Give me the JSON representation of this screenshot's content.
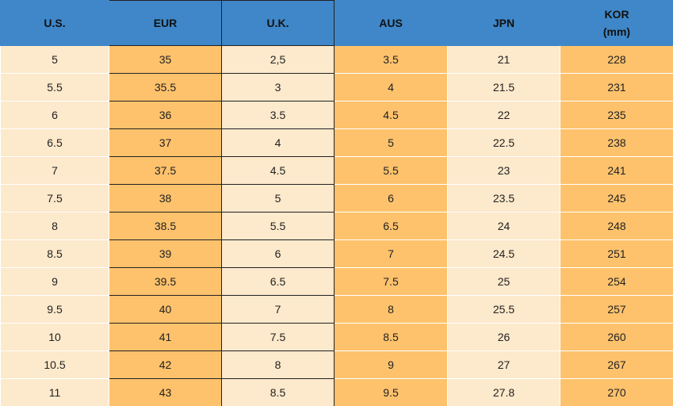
{
  "table": {
    "headers": [
      "U.S.",
      "EUR",
      "U.K.",
      "AUS",
      "JPN",
      "KOR (mm)"
    ],
    "rows": [
      [
        "5",
        "35",
        "2,5",
        "3.5",
        "21",
        "228"
      ],
      [
        "5.5",
        "35.5",
        "3",
        "4",
        "21.5",
        "231"
      ],
      [
        "6",
        "36",
        "3.5",
        "4.5",
        "22",
        "235"
      ],
      [
        "6.5",
        "37",
        "4",
        "5",
        "22.5",
        "238"
      ],
      [
        "7",
        "37.5",
        "4.5",
        "5.5",
        "23",
        "241"
      ],
      [
        "7.5",
        "38",
        "5",
        "6",
        "23.5",
        "245"
      ],
      [
        "8",
        "38.5",
        "5.5",
        "6.5",
        "24",
        "248"
      ],
      [
        "8.5",
        "39",
        "6",
        "7",
        "24.5",
        "251"
      ],
      [
        "9",
        "39.5",
        "6.5",
        "7.5",
        "25",
        "254"
      ],
      [
        "9.5",
        "40",
        "7",
        "8",
        "25.5",
        "257"
      ],
      [
        "10",
        "41",
        "7.5",
        "8.5",
        "26",
        "260"
      ],
      [
        "10.5",
        "42",
        "8",
        "9",
        "27",
        "267"
      ],
      [
        "11",
        "43",
        "8.5",
        "9.5",
        "27.8",
        "270"
      ]
    ]
  }
}
